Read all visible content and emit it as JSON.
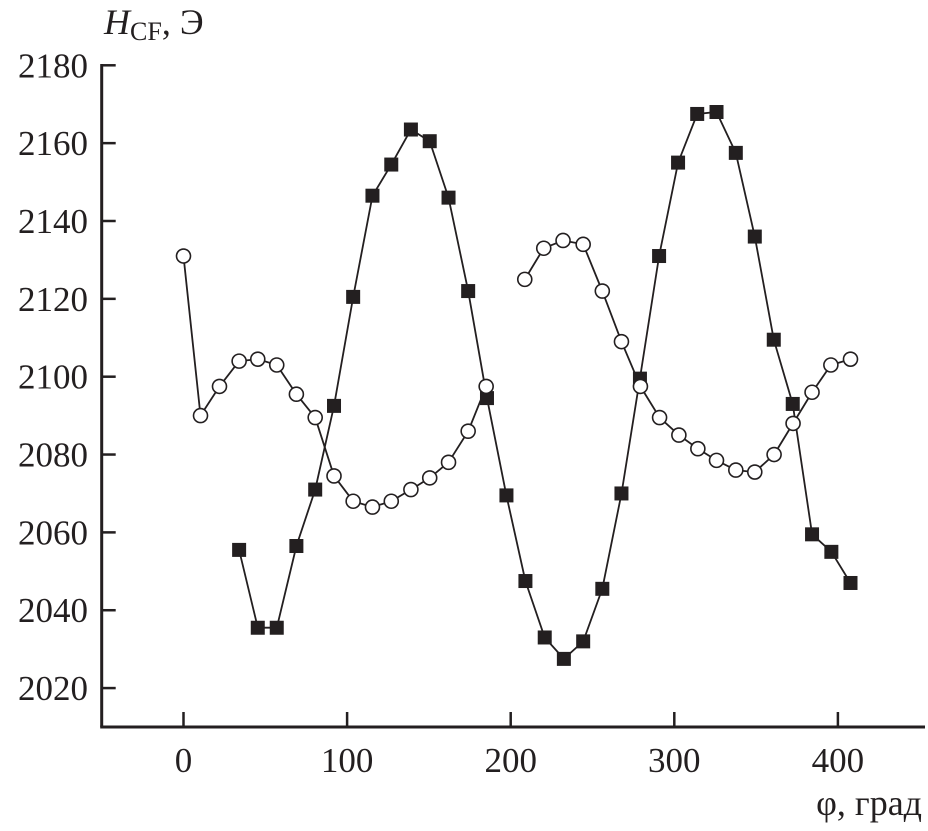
{
  "chart_data": {
    "type": "line",
    "title": "",
    "ylabel": {
      "main": "H",
      "sub": "CF",
      "unit": ", Э"
    },
    "xlabel": "φ, град",
    "xlim": [
      -50,
      452
    ],
    "ylim": [
      2010,
      2180
    ],
    "xticks": [
      0,
      100,
      200,
      300,
      400
    ],
    "xtick_labels": [
      "0",
      "100",
      "200",
      "300",
      "400"
    ],
    "yticks": [
      2020,
      2040,
      2060,
      2080,
      2100,
      2120,
      2140,
      2160,
      2180
    ],
    "ytick_labels": [
      "2020",
      "2040",
      "2060",
      "2080",
      "2100",
      "2120",
      "2140",
      "2160",
      "2180"
    ],
    "grid": false,
    "series": [
      {
        "name": "filled-squares",
        "marker": "square-filled",
        "segments": [
          [
            [
              34,
              2055.5
            ],
            [
              45.4,
              2035.5
            ],
            [
              57,
              2035.5
            ],
            [
              69,
              2056.5
            ],
            [
              80.5,
              2071
            ],
            [
              92,
              2092.5
            ],
            [
              103.7,
              2120.5
            ],
            [
              115.5,
              2146.5
            ],
            [
              127,
              2154.5
            ],
            [
              139,
              2163.5
            ],
            [
              150.5,
              2160.5
            ],
            [
              162,
              2146
            ],
            [
              174,
              2122
            ],
            [
              185.5,
              2094.5
            ],
            [
              197.4,
              2069.5
            ],
            [
              209,
              2047.5
            ],
            [
              220.8,
              2033
            ],
            [
              232.5,
              2027.5
            ],
            [
              244.3,
              2032
            ],
            [
              256,
              2045.5
            ],
            [
              267.7,
              2070
            ],
            [
              279,
              2099.5
            ],
            [
              290.7,
              2131
            ],
            [
              302.3,
              2155
            ],
            [
              314,
              2167.5
            ],
            [
              325.8,
              2168
            ],
            [
              337.6,
              2157.5
            ],
            [
              349.2,
              2136
            ],
            [
              360.8,
              2109.5
            ],
            [
              372.4,
              2093
            ],
            [
              384.2,
              2059.5
            ],
            [
              396,
              2055
            ],
            [
              407.7,
              2047
            ]
          ]
        ]
      },
      {
        "name": "open-circles",
        "marker": "circle-open",
        "segments": [
          [
            [
              0,
              2131
            ],
            [
              10.4,
              2090
            ],
            [
              22,
              2097.5
            ],
            [
              34,
              2104
            ],
            [
              45.4,
              2104.5
            ],
            [
              57,
              2103
            ],
            [
              69,
              2095.5
            ],
            [
              80.5,
              2089.5
            ],
            [
              92,
              2074.5
            ],
            [
              103.7,
              2068
            ],
            [
              115.5,
              2066.5
            ],
            [
              127,
              2068
            ],
            [
              139,
              2071
            ],
            [
              150.5,
              2074
            ],
            [
              162,
              2078
            ],
            [
              174,
              2086
            ],
            [
              185,
              2097.5
            ]
          ],
          [
            [
              208.6,
              2125
            ],
            [
              220.2,
              2133
            ],
            [
              232,
              2135
            ],
            [
              244.3,
              2134
            ],
            [
              256,
              2122
            ],
            [
              267.7,
              2109
            ],
            [
              279.3,
              2097.5
            ],
            [
              291,
              2089.5
            ],
            [
              302.8,
              2085
            ],
            [
              314.4,
              2081.5
            ],
            [
              325.8,
              2078.5
            ],
            [
              337.6,
              2076
            ],
            [
              349.2,
              2075.5
            ],
            [
              361,
              2080
            ],
            [
              372.6,
              2088
            ],
            [
              384.2,
              2096
            ],
            [
              395.7,
              2103
            ],
            [
              407.7,
              2104.5
            ]
          ]
        ]
      }
    ],
    "colors": {
      "ink": "#231f20",
      "background": "#ffffff"
    }
  }
}
